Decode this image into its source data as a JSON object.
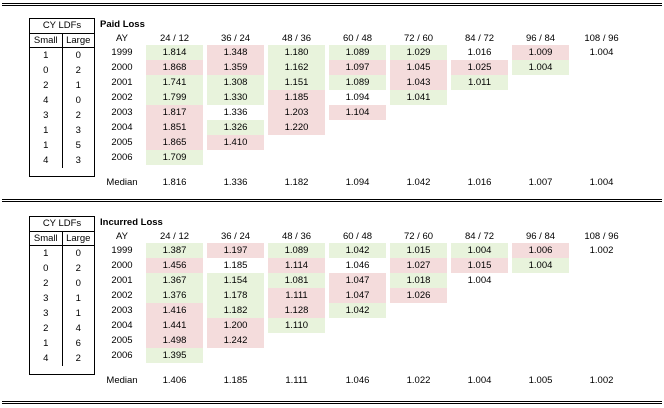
{
  "colors": {
    "green": "#e8f3dc",
    "red": "#f4dcdc"
  },
  "sections": [
    {
      "cy_title": "CY LDFs",
      "cy_headers": [
        "Small",
        "Large"
      ],
      "cy_rows": [
        [
          "1",
          "0"
        ],
        [
          "0",
          "2"
        ],
        [
          "2",
          "1"
        ],
        [
          "4",
          "0"
        ],
        [
          "3",
          "2"
        ],
        [
          "1",
          "3"
        ],
        [
          "1",
          "5"
        ],
        [
          "4",
          "3"
        ]
      ],
      "title": "Paid Loss",
      "ay_header": "AY",
      "col_headers": [
        "24 / 12",
        "36 / 24",
        "48 / 36",
        "60 / 48",
        "72 / 60",
        "84 / 72",
        "96 / 84",
        "108 / 96"
      ],
      "rows": [
        {
          "ay": "1999",
          "values": [
            "1.814",
            "1.348",
            "1.180",
            "1.089",
            "1.029",
            "1.016",
            "1.009",
            "1.004"
          ],
          "shade": [
            "g",
            "r",
            "g",
            "g",
            "g",
            "",
            "r",
            ""
          ]
        },
        {
          "ay": "2000",
          "values": [
            "1.868",
            "1.359",
            "1.162",
            "1.097",
            "1.045",
            "1.025",
            "1.004"
          ],
          "shade": [
            "r",
            "r",
            "g",
            "r",
            "r",
            "r",
            "g"
          ]
        },
        {
          "ay": "2001",
          "values": [
            "1.741",
            "1.308",
            "1.151",
            "1.089",
            "1.043",
            "1.011"
          ],
          "shade": [
            "g",
            "g",
            "g",
            "g",
            "r",
            "g"
          ]
        },
        {
          "ay": "2002",
          "values": [
            "1.799",
            "1.330",
            "1.185",
            "1.094",
            "1.041"
          ],
          "shade": [
            "g",
            "g",
            "r",
            "",
            "g"
          ]
        },
        {
          "ay": "2003",
          "values": [
            "1.817",
            "1.336",
            "1.203",
            "1.104"
          ],
          "shade": [
            "r",
            "",
            "r",
            "r"
          ]
        },
        {
          "ay": "2004",
          "values": [
            "1.851",
            "1.326",
            "1.220"
          ],
          "shade": [
            "r",
            "g",
            "r"
          ]
        },
        {
          "ay": "2005",
          "values": [
            "1.865",
            "1.410"
          ],
          "shade": [
            "r",
            "r"
          ]
        },
        {
          "ay": "2006",
          "values": [
            "1.709"
          ],
          "shade": [
            "g"
          ]
        }
      ],
      "median_label": "Median",
      "medians": [
        "1.816",
        "1.336",
        "1.182",
        "1.094",
        "1.042",
        "1.016",
        "1.007",
        "1.004"
      ]
    },
    {
      "cy_title": "CY LDFs",
      "cy_headers": [
        "Small",
        "Large"
      ],
      "cy_rows": [
        [
          "1",
          "0"
        ],
        [
          "0",
          "2"
        ],
        [
          "2",
          "0"
        ],
        [
          "3",
          "1"
        ],
        [
          "3",
          "1"
        ],
        [
          "2",
          "4"
        ],
        [
          "1",
          "6"
        ],
        [
          "4",
          "2"
        ]
      ],
      "title": "Incurred Loss",
      "ay_header": "AY",
      "col_headers": [
        "24 / 12",
        "36 / 24",
        "48 / 36",
        "60 / 48",
        "72 / 60",
        "84 / 72",
        "96 / 84",
        "108 / 96"
      ],
      "rows": [
        {
          "ay": "1999",
          "values": [
            "1.387",
            "1.197",
            "1.089",
            "1.042",
            "1.015",
            "1.004",
            "1.006",
            "1.002"
          ],
          "shade": [
            "g",
            "r",
            "g",
            "g",
            "g",
            "g",
            "r",
            ""
          ]
        },
        {
          "ay": "2000",
          "values": [
            "1.456",
            "1.185",
            "1.114",
            "1.046",
            "1.027",
            "1.015",
            "1.004"
          ],
          "shade": [
            "r",
            "",
            "r",
            "",
            "r",
            "r",
            "g"
          ]
        },
        {
          "ay": "2001",
          "values": [
            "1.367",
            "1.154",
            "1.081",
            "1.047",
            "1.018",
            "1.004"
          ],
          "shade": [
            "g",
            "g",
            "g",
            "r",
            "g",
            ""
          ]
        },
        {
          "ay": "2002",
          "values": [
            "1.376",
            "1.178",
            "1.111",
            "1.047",
            "1.026"
          ],
          "shade": [
            "g",
            "g",
            "r",
            "r",
            "r"
          ]
        },
        {
          "ay": "2003",
          "values": [
            "1.416",
            "1.182",
            "1.128",
            "1.042"
          ],
          "shade": [
            "r",
            "g",
            "r",
            "g"
          ]
        },
        {
          "ay": "2004",
          "values": [
            "1.441",
            "1.200",
            "1.110"
          ],
          "shade": [
            "r",
            "r",
            "g"
          ]
        },
        {
          "ay": "2005",
          "values": [
            "1.498",
            "1.242"
          ],
          "shade": [
            "r",
            "r"
          ]
        },
        {
          "ay": "2006",
          "values": [
            "1.395"
          ],
          "shade": [
            "g"
          ]
        }
      ],
      "median_label": "Median",
      "medians": [
        "1.406",
        "1.185",
        "1.111",
        "1.046",
        "1.022",
        "1.004",
        "1.005",
        "1.002"
      ]
    }
  ]
}
